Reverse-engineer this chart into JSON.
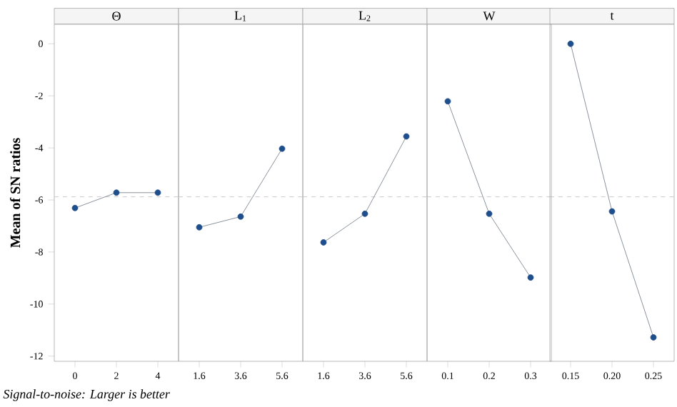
{
  "chart_data": [
    {
      "type": "line",
      "title": "Θ",
      "ylabel": "Mean of SN ratios",
      "categories": [
        "0",
        "2",
        "4"
      ],
      "values": [
        -6.31,
        -5.72,
        -5.72
      ],
      "color": "#1f4e8c",
      "marker": "circle",
      "ylim": [
        -12.2,
        0.75
      ],
      "yticks": [
        0,
        -2,
        -4,
        -6,
        -8,
        -10,
        -12
      ],
      "ref_lines": [
        {
          "axis": "y",
          "value": -5.88,
          "color": "#bbbbbb",
          "line_style": "dashed"
        }
      ],
      "annotations": [
        "Signal-to-noise: Larger is better"
      ]
    },
    {
      "type": "line",
      "title": "L$_{1}$",
      "categories": [
        "1.6",
        "3.6",
        "5.6"
      ],
      "values": [
        -7.05,
        -6.64,
        -4.03
      ],
      "color": "#1f4e8c",
      "marker": "circle",
      "ylim": [
        -12.2,
        0.75
      ],
      "tick_labels": "x",
      "ref_lines": [
        {
          "axis": "y",
          "value": -5.88,
          "color": "#bbbbbb",
          "line_style": "dashed"
        }
      ]
    },
    {
      "type": "line",
      "title": "L$_{2}$",
      "categories": [
        "1.6",
        "3.6",
        "5.6"
      ],
      "values": [
        -7.63,
        -6.53,
        -3.56
      ],
      "color": "#1f4e8c",
      "marker": "circle",
      "ylim": [
        -12.2,
        0.75
      ],
      "tick_labels": "x",
      "ref_lines": [
        {
          "axis": "y",
          "value": -5.88,
          "color": "#bbbbbb",
          "line_style": "dashed"
        }
      ]
    },
    {
      "type": "line",
      "title": "W",
      "categories": [
        "0.1",
        "0.2",
        "0.3"
      ],
      "values": [
        -2.21,
        -6.53,
        -8.98
      ],
      "color": "#1f4e8c",
      "marker": "circle",
      "ylim": [
        -12.2,
        0.75
      ],
      "tick_labels": "x",
      "ref_lines": [
        {
          "axis": "y",
          "value": -5.88,
          "color": "#bbbbbb",
          "line_style": "dashed"
        }
      ]
    },
    {
      "type": "line",
      "title": "t",
      "categories": [
        "0.15",
        "0.20",
        "0.25"
      ],
      "values": [
        0.0,
        -6.44,
        -11.28
      ],
      "color": "#1f4e8c",
      "marker": "circle",
      "ylim": [
        -12.2,
        0.75
      ],
      "tick_labels": "x",
      "ref_lines": [
        {
          "axis": "y",
          "value": -5.88,
          "color": "#bbbbbb",
          "line_style": "dashed"
        }
      ]
    }
  ]
}
